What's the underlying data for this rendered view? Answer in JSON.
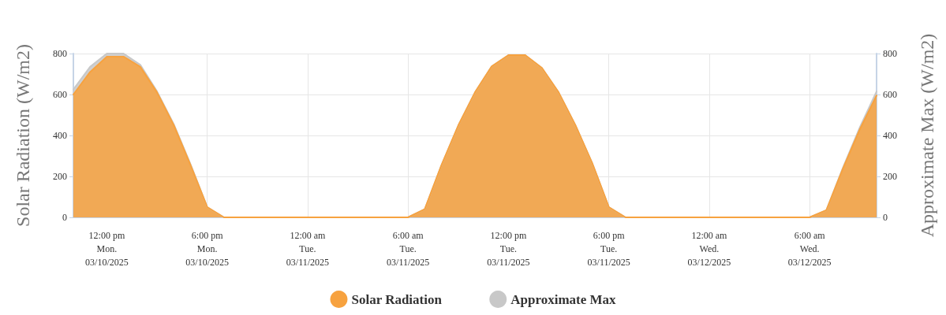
{
  "chart_data": {
    "type": "area",
    "ylabel": "Solar Radiation (W/m2)",
    "y2label": "Approximate Max (W/m2)",
    "x": [
      "2025-03-10T10:00",
      "2025-03-10T11:00",
      "2025-03-10T12:00",
      "2025-03-10T13:00",
      "2025-03-10T14:00",
      "2025-03-10T15:00",
      "2025-03-10T16:00",
      "2025-03-10T17:00",
      "2025-03-10T18:00",
      "2025-03-10T19:00",
      "2025-03-10T20:00",
      "2025-03-10T21:00",
      "2025-03-10T22:00",
      "2025-03-10T23:00",
      "2025-03-11T00:00",
      "2025-03-11T01:00",
      "2025-03-11T02:00",
      "2025-03-11T03:00",
      "2025-03-11T04:00",
      "2025-03-11T05:00",
      "2025-03-11T06:00",
      "2025-03-11T07:00",
      "2025-03-11T08:00",
      "2025-03-11T09:00",
      "2025-03-11T10:00",
      "2025-03-11T11:00",
      "2025-03-11T12:00",
      "2025-03-11T13:00",
      "2025-03-11T14:00",
      "2025-03-11T15:00",
      "2025-03-11T16:00",
      "2025-03-11T17:00",
      "2025-03-11T18:00",
      "2025-03-11T19:00",
      "2025-03-11T20:00",
      "2025-03-11T21:00",
      "2025-03-11T22:00",
      "2025-03-11T23:00",
      "2025-03-12T00:00",
      "2025-03-12T01:00",
      "2025-03-12T02:00",
      "2025-03-12T03:00",
      "2025-03-12T04:00",
      "2025-03-12T05:00",
      "2025-03-12T06:00",
      "2025-03-12T07:00",
      "2025-03-12T08:00",
      "2025-03-12T09:00",
      "2025-03-12T10:00"
    ],
    "series": [
      {
        "name": "Approximate Max",
        "color": "#c8c8c8",
        "values": [
          625,
          735,
          800,
          800,
          745,
          615,
          455,
          260,
          50,
          0,
          0,
          0,
          0,
          0,
          0,
          0,
          0,
          0,
          0,
          0,
          0,
          40,
          255,
          448,
          610,
          737,
          792,
          792,
          730,
          610,
          450,
          266,
          50,
          0,
          0,
          0,
          0,
          0,
          0,
          0,
          0,
          0,
          0,
          0,
          0,
          35,
          245,
          440,
          615
        ]
      },
      {
        "name": "Solar Radiation",
        "color": "#f7a23f",
        "values": [
          600,
          710,
          785,
          785,
          735,
          610,
          450,
          255,
          50,
          0,
          0,
          0,
          0,
          0,
          0,
          0,
          0,
          0,
          0,
          0,
          0,
          40,
          255,
          448,
          610,
          737,
          792,
          792,
          730,
          610,
          450,
          266,
          50,
          0,
          0,
          0,
          0,
          0,
          0,
          0,
          0,
          0,
          0,
          0,
          0,
          35,
          240,
          430,
          595
        ]
      }
    ],
    "xlim": [
      "2025-03-10T10:00",
      "2025-03-12T10:00"
    ],
    "xticks": [
      {
        "value": "2025-03-10T12:00",
        "label": "12:00 pm\nMon.\n03/10/2025"
      },
      {
        "value": "2025-03-10T18:00",
        "label": "6:00 pm\nMon.\n03/10/2025"
      },
      {
        "value": "2025-03-11T00:00",
        "label": "12:00 am\nTue.\n03/11/2025"
      },
      {
        "value": "2025-03-11T06:00",
        "label": "6:00 am\nTue.\n03/11/2025"
      },
      {
        "value": "2025-03-11T12:00",
        "label": "12:00 pm\nTue.\n03/11/2025"
      },
      {
        "value": "2025-03-11T18:00",
        "label": "6:00 pm\nTue.\n03/11/2025"
      },
      {
        "value": "2025-03-12T00:00",
        "label": "12:00 am\nWed.\n03/12/2025"
      },
      {
        "value": "2025-03-12T06:00",
        "label": "6:00 am\nWed.\n03/12/2025"
      }
    ],
    "ylim": [
      0,
      800
    ],
    "yticks": [
      0,
      200,
      400,
      600,
      800
    ],
    "y2lim": [
      0,
      800
    ],
    "y2ticks": [
      0,
      200,
      400,
      600,
      800
    ],
    "grid": true,
    "legend": "bottom",
    "marker": "none",
    "line_style": "solid"
  }
}
